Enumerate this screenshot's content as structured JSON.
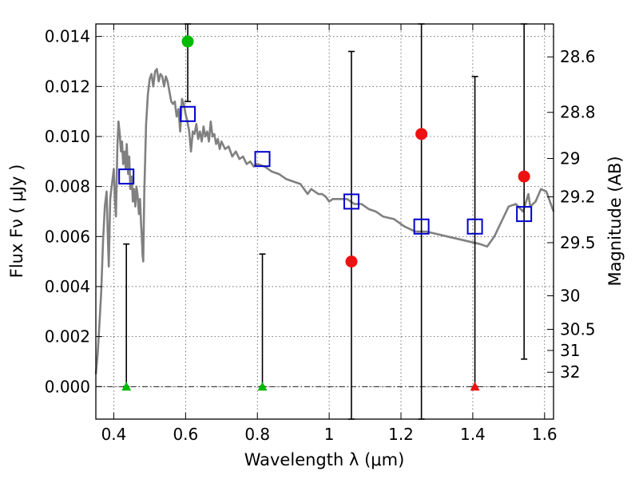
{
  "chart_data": {
    "type": "scatter",
    "xlabel": "Wavelength  λ (μm)",
    "ylabel": "Flux  Fν  ( μJy )",
    "y2label": "Magnitude (AB)",
    "xlim": [
      0.35,
      1.625
    ],
    "ylim": [
      -0.0013,
      0.0145
    ],
    "x_ticks": [
      {
        "value": 0.4,
        "label": "0.4"
      },
      {
        "value": 0.6,
        "label": "0.6"
      },
      {
        "value": 0.8,
        "label": "0.8"
      },
      {
        "value": 1.0,
        "label": "1"
      },
      {
        "value": 1.2,
        "label": "1.2"
      },
      {
        "value": 1.4,
        "label": "1.4"
      },
      {
        "value": 1.6,
        "label": "1.6"
      }
    ],
    "y_ticks": [
      {
        "value": 0.0,
        "label": "0.000"
      },
      {
        "value": 0.002,
        "label": "0.002"
      },
      {
        "value": 0.004,
        "label": "0.004"
      },
      {
        "value": 0.006,
        "label": "0.006"
      },
      {
        "value": 0.008,
        "label": "0.008"
      },
      {
        "value": 0.01,
        "label": "0.010"
      },
      {
        "value": 0.012,
        "label": "0.012"
      },
      {
        "value": 0.014,
        "label": "0.014"
      }
    ],
    "y2_ticks": [
      {
        "value": 28.6,
        "label": "28.6"
      },
      {
        "value": 28.8,
        "label": "28.8"
      },
      {
        "value": 29.0,
        "label": "29"
      },
      {
        "value": 29.2,
        "label": "29.2"
      },
      {
        "value": 29.5,
        "label": "29.5"
      },
      {
        "value": 30.0,
        "label": "30"
      },
      {
        "value": 30.5,
        "label": "30.5"
      },
      {
        "value": 31.0,
        "label": "31"
      },
      {
        "value": 32.0,
        "label": "32"
      }
    ],
    "grid": true,
    "zero_line": true,
    "sed_model": {
      "color": "#808080",
      "points": [
        [
          0.35,
          0.0005
        ],
        [
          0.355,
          0.0013
        ],
        [
          0.36,
          0.0025
        ],
        [
          0.365,
          0.0038
        ],
        [
          0.37,
          0.0058
        ],
        [
          0.375,
          0.0072
        ],
        [
          0.38,
          0.0078
        ],
        [
          0.383,
          0.0062
        ],
        [
          0.386,
          0.0048
        ],
        [
          0.39,
          0.0075
        ],
        [
          0.395,
          0.0081
        ],
        [
          0.4,
          0.0087
        ],
        [
          0.403,
          0.0075
        ],
        [
          0.406,
          0.0068
        ],
        [
          0.41,
          0.0096
        ],
        [
          0.413,
          0.0106
        ],
        [
          0.416,
          0.0102
        ],
        [
          0.42,
          0.0094
        ],
        [
          0.423,
          0.0098
        ],
        [
          0.426,
          0.0089
        ],
        [
          0.43,
          0.0094
        ],
        [
          0.433,
          0.0087
        ],
        [
          0.436,
          0.0097
        ],
        [
          0.44,
          0.0085
        ],
        [
          0.443,
          0.0092
        ],
        [
          0.446,
          0.0079
        ],
        [
          0.45,
          0.0084
        ],
        [
          0.453,
          0.0074
        ],
        [
          0.456,
          0.0079
        ],
        [
          0.46,
          0.0072
        ],
        [
          0.463,
          0.008
        ],
        [
          0.466,
          0.0077
        ],
        [
          0.47,
          0.0069
        ],
        [
          0.473,
          0.0075
        ],
        [
          0.476,
          0.0065
        ],
        [
          0.478,
          0.006
        ],
        [
          0.48,
          0.0053
        ],
        [
          0.482,
          0.005
        ],
        [
          0.485,
          0.0078
        ],
        [
          0.49,
          0.0105
        ],
        [
          0.495,
          0.0117
        ],
        [
          0.5,
          0.0123
        ],
        [
          0.505,
          0.0125
        ],
        [
          0.51,
          0.012
        ],
        [
          0.515,
          0.0126
        ],
        [
          0.52,
          0.0127
        ],
        [
          0.525,
          0.0122
        ],
        [
          0.53,
          0.0125
        ],
        [
          0.535,
          0.0124
        ],
        [
          0.54,
          0.012
        ],
        [
          0.545,
          0.0124
        ],
        [
          0.55,
          0.0122
        ],
        [
          0.555,
          0.0118
        ],
        [
          0.56,
          0.0114
        ],
        [
          0.565,
          0.0113
        ],
        [
          0.57,
          0.0114
        ],
        [
          0.575,
          0.0108
        ],
        [
          0.58,
          0.0111
        ],
        [
          0.585,
          0.0102
        ],
        [
          0.59,
          0.0115
        ],
        [
          0.595,
          0.0113
        ],
        [
          0.6,
          0.0109
        ],
        [
          0.605,
          0.0106
        ],
        [
          0.61,
          0.0102
        ],
        [
          0.615,
          0.0094
        ],
        [
          0.62,
          0.0102
        ],
        [
          0.625,
          0.0101
        ],
        [
          0.63,
          0.0105
        ],
        [
          0.635,
          0.0099
        ],
        [
          0.64,
          0.0102
        ],
        [
          0.645,
          0.0098
        ],
        [
          0.65,
          0.0104
        ],
        [
          0.655,
          0.01
        ],
        [
          0.66,
          0.0102
        ],
        [
          0.665,
          0.0098
        ],
        [
          0.67,
          0.0106
        ],
        [
          0.675,
          0.01
        ],
        [
          0.68,
          0.0101
        ],
        [
          0.685,
          0.0097
        ],
        [
          0.69,
          0.0099
        ],
        [
          0.695,
          0.0095
        ],
        [
          0.7,
          0.0098
        ],
        [
          0.71,
          0.0095
        ],
        [
          0.72,
          0.0096
        ],
        [
          0.73,
          0.0092
        ],
        [
          0.74,
          0.0094
        ],
        [
          0.75,
          0.0091
        ],
        [
          0.76,
          0.0092
        ],
        [
          0.77,
          0.0089
        ],
        [
          0.78,
          0.009
        ],
        [
          0.79,
          0.0088
        ],
        [
          0.8,
          0.0089
        ],
        [
          0.82,
          0.0088
        ],
        [
          0.84,
          0.0086
        ],
        [
          0.86,
          0.0085
        ],
        [
          0.88,
          0.0083
        ],
        [
          0.9,
          0.0082
        ],
        [
          0.92,
          0.0081
        ],
        [
          0.94,
          0.0077
        ],
        [
          0.95,
          0.0079
        ],
        [
          0.96,
          0.0078
        ],
        [
          0.97,
          0.0077
        ],
        [
          0.98,
          0.0077
        ],
        [
          0.99,
          0.0076
        ],
        [
          1.0,
          0.0074
        ],
        [
          1.01,
          0.0075
        ],
        [
          1.03,
          0.0075
        ],
        [
          1.05,
          0.0075
        ],
        [
          1.07,
          0.0073
        ],
        [
          1.09,
          0.0073
        ],
        [
          1.11,
          0.0071
        ],
        [
          1.13,
          0.007
        ],
        [
          1.15,
          0.0068
        ],
        [
          1.18,
          0.0067
        ],
        [
          1.21,
          0.0064
        ],
        [
          1.24,
          0.0062
        ],
        [
          1.27,
          0.0062
        ],
        [
          1.3,
          0.0061
        ],
        [
          1.33,
          0.006
        ],
        [
          1.36,
          0.0059
        ],
        [
          1.39,
          0.0058
        ],
        [
          1.42,
          0.0057
        ],
        [
          1.44,
          0.0056
        ],
        [
          1.46,
          0.006
        ],
        [
          1.48,
          0.0066
        ],
        [
          1.5,
          0.0072
        ],
        [
          1.52,
          0.0073
        ],
        [
          1.54,
          0.007
        ],
        [
          1.555,
          0.0077
        ],
        [
          1.56,
          0.0072
        ],
        [
          1.575,
          0.0074
        ],
        [
          1.59,
          0.0079
        ],
        [
          1.605,
          0.0078
        ],
        [
          1.615,
          0.0074
        ],
        [
          1.625,
          0.007
        ]
      ]
    },
    "model_fluxes": {
      "color": "#0000cc",
      "points": [
        [
          0.435,
          0.0084
        ],
        [
          0.606,
          0.0109
        ],
        [
          0.814,
          0.0091
        ],
        [
          1.062,
          0.0074
        ],
        [
          1.257,
          0.0064
        ],
        [
          1.406,
          0.0064
        ],
        [
          1.543,
          0.0069
        ]
      ]
    },
    "detections": {
      "color_green": "#00bb00",
      "color_red": "#ee1111",
      "points": [
        {
          "x": 0.606,
          "y": 0.0138,
          "color": "green"
        },
        {
          "x": 1.062,
          "y": 0.005,
          "color": "red"
        },
        {
          "x": 1.257,
          "y": 0.0101,
          "color": "red"
        },
        {
          "x": 1.543,
          "y": 0.0084,
          "color": "red"
        }
      ]
    },
    "error_bars": [
      {
        "x": 0.435,
        "low": 0.0,
        "high": 0.0057
      },
      {
        "x": 0.606,
        "low": 0.0114,
        "high": 0.0145
      },
      {
        "x": 0.814,
        "low": 0.0,
        "high": 0.0053
      },
      {
        "x": 1.062,
        "low": -0.0013,
        "high": 0.0134
      },
      {
        "x": 1.257,
        "low": -0.0013,
        "high": 0.0145
      },
      {
        "x": 1.406,
        "low": 0.0,
        "high": 0.0124
      },
      {
        "x": 1.543,
        "low": 0.0011,
        "high": 0.0145
      }
    ],
    "non_detections": [
      {
        "x": 0.435,
        "y": 0.0,
        "color": "green"
      },
      {
        "x": 0.814,
        "y": 0.0,
        "color": "green"
      },
      {
        "x": 1.406,
        "y": 0.0,
        "color": "red"
      }
    ]
  }
}
